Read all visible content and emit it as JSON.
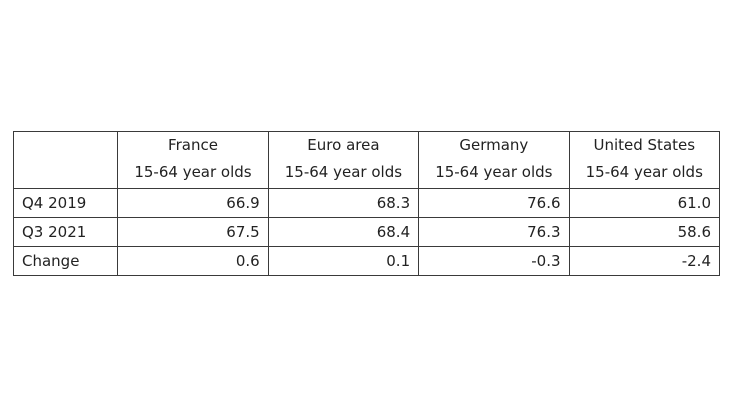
{
  "table": {
    "columns": [
      {
        "name": "France",
        "sub": "15-64 year olds"
      },
      {
        "name": "Euro area",
        "sub": "15-64 year olds"
      },
      {
        "name": "Germany",
        "sub": "15-64 year olds"
      },
      {
        "name": "United States",
        "sub": "15-64 year olds"
      }
    ],
    "rows": [
      {
        "label": "Q4 2019",
        "values": [
          "66.9",
          "68.3",
          "76.6",
          "61.0"
        ]
      },
      {
        "label": "Q3 2021",
        "values": [
          "67.5",
          "68.4",
          "76.3",
          "58.6"
        ]
      },
      {
        "label": "Change",
        "values": [
          "0.6",
          "0.1",
          "-0.3",
          "-2.4"
        ]
      }
    ]
  }
}
